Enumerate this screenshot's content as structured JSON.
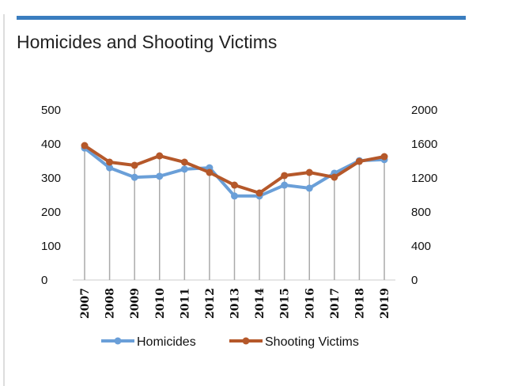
{
  "title": "Homicides and Shooting Victims",
  "chart_data": {
    "type": "line",
    "title": "Homicides and Shooting Victims",
    "categories": [
      "2007",
      "2008",
      "2009",
      "2010",
      "2011",
      "2012",
      "2013",
      "2014",
      "2015",
      "2016",
      "2017",
      "2018",
      "2019"
    ],
    "series": [
      {
        "name": "Homicides",
        "axis": "left",
        "color": "#6a9fd8",
        "values": [
          388,
          330,
          302,
          305,
          326,
          330,
          247,
          247,
          279,
          270,
          314,
          351,
          354
        ]
      },
      {
        "name": "Shooting Victims",
        "axis": "right",
        "color": "#b5582a",
        "values": [
          1581,
          1386,
          1349,
          1460,
          1386,
          1265,
          1116,
          1023,
          1228,
          1265,
          1209,
          1395,
          1451
        ]
      }
    ],
    "y_left": {
      "range": [
        0,
        500
      ],
      "ticks": [
        "0",
        "100",
        "200",
        "300",
        "400",
        "500"
      ]
    },
    "y_right": {
      "range": [
        0,
        2000
      ],
      "ticks": [
        "0",
        "400",
        "800",
        "1200",
        "1600",
        "2000"
      ]
    },
    "grid": false,
    "legend": "bottom"
  }
}
